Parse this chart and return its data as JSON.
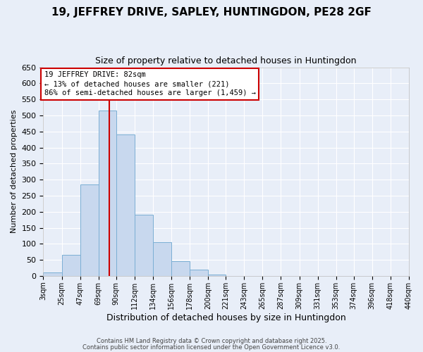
{
  "title": "19, JEFFREY DRIVE, SAPLEY, HUNTINGDON, PE28 2GF",
  "subtitle": "Size of property relative to detached houses in Huntingdon",
  "xlabel": "Distribution of detached houses by size in Huntingdon",
  "ylabel": "Number of detached properties",
  "bin_edges": [
    3,
    25,
    47,
    69,
    90,
    112,
    134,
    156,
    178,
    200,
    221,
    243,
    265,
    287,
    309,
    331,
    353,
    374,
    396,
    418,
    440
  ],
  "bin_labels": [
    "3sqm",
    "25sqm",
    "47sqm",
    "69sqm",
    "90sqm",
    "112sqm",
    "134sqm",
    "156sqm",
    "178sqm",
    "200sqm",
    "221sqm",
    "243sqm",
    "265sqm",
    "287sqm",
    "309sqm",
    "331sqm",
    "353sqm",
    "374sqm",
    "396sqm",
    "418sqm",
    "440sqm"
  ],
  "counts": [
    10,
    65,
    285,
    515,
    440,
    190,
    105,
    45,
    20,
    5,
    0,
    0,
    0,
    0,
    0,
    0,
    0,
    0,
    0,
    0
  ],
  "bar_color": "#c8d8ee",
  "bar_edge_color": "#7bafd4",
  "reference_line_x": 82,
  "ylim": [
    0,
    650
  ],
  "yticks": [
    0,
    50,
    100,
    150,
    200,
    250,
    300,
    350,
    400,
    450,
    500,
    550,
    600,
    650
  ],
  "annotation_title": "19 JEFFREY DRIVE: 82sqm",
  "annotation_line1": "← 13% of detached houses are smaller (221)",
  "annotation_line2": "86% of semi-detached houses are larger (1,459) →",
  "annotation_box_facecolor": "#ffffff",
  "annotation_box_edgecolor": "#cc0000",
  "footer_line1": "Contains HM Land Registry data © Crown copyright and database right 2025.",
  "footer_line2": "Contains public sector information licensed under the Open Government Licence v3.0.",
  "background_color": "#e8eef8",
  "plot_bg_color": "#e8eef8",
  "grid_color": "#ffffff",
  "title_fontsize": 11,
  "subtitle_fontsize": 9
}
